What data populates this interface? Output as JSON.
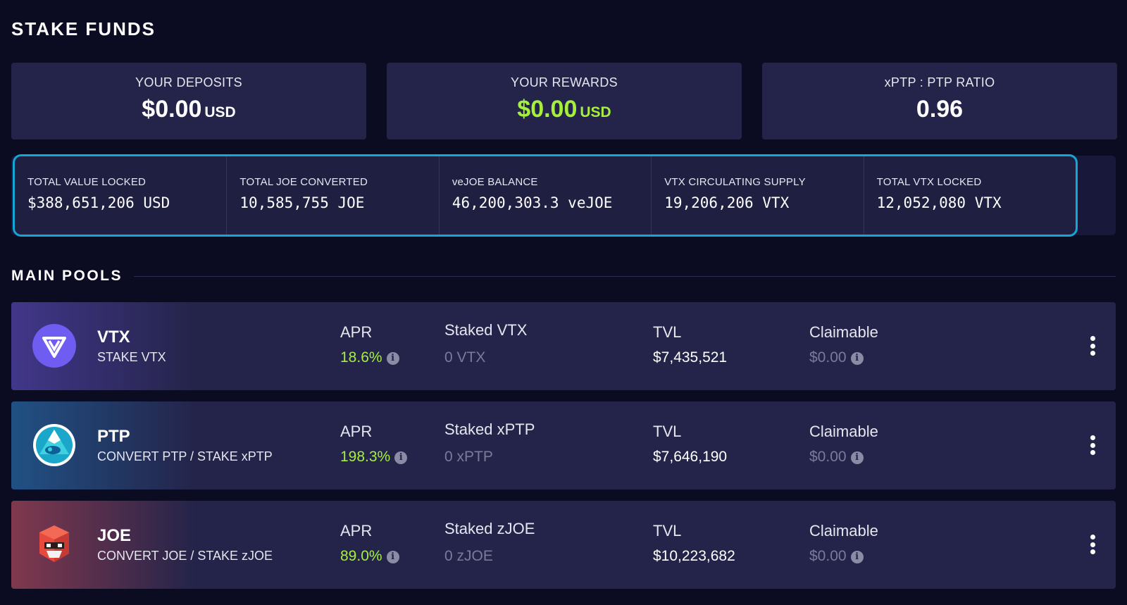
{
  "page_title": "STAKE FUNDS",
  "summary": {
    "deposits": {
      "label": "YOUR DEPOSITS",
      "value": "$0.00",
      "unit": "USD"
    },
    "rewards": {
      "label": "YOUR REWARDS",
      "value": "$0.00",
      "unit": "USD"
    },
    "ratio": {
      "label": "xPTP : PTP RATIO",
      "value": "0.96"
    }
  },
  "stats": [
    {
      "label": "TOTAL VALUE LOCKED",
      "value": "$388,651,206 USD"
    },
    {
      "label": "TOTAL JOE CONVERTED",
      "value": "10,585,755 JOE"
    },
    {
      "label": "veJOE BALANCE",
      "value": "46,200,303.3 veJOE"
    },
    {
      "label": "VTX CIRCULATING SUPPLY",
      "value": "19,206,206 VTX"
    },
    {
      "label": "TOTAL VTX LOCKED",
      "value": "12,052,080 VTX"
    }
  ],
  "section_title": "MAIN POOLS",
  "pools": [
    {
      "name": "VTX",
      "subtitle": "STAKE VTX",
      "apr_label": "APR",
      "apr": "18.6%",
      "staked_label": "Staked VTX",
      "staked": "0 VTX",
      "tvl_label": "TVL",
      "tvl": "$7,435,521",
      "claimable_label": "Claimable",
      "claimable": "$0.00"
    },
    {
      "name": "PTP",
      "subtitle": "CONVERT PTP / STAKE xPTP",
      "apr_label": "APR",
      "apr": "198.3%",
      "staked_label": "Staked xPTP",
      "staked": "0 xPTP",
      "tvl_label": "TVL",
      "tvl": "$7,646,190",
      "claimable_label": "Claimable",
      "claimable": "$0.00"
    },
    {
      "name": "JOE",
      "subtitle": "CONVERT JOE / STAKE zJOE",
      "apr_label": "APR",
      "apr": "89.0%",
      "staked_label": "Staked zJOE",
      "staked": "0 zJOE",
      "tvl_label": "TVL",
      "tvl": "$10,223,682",
      "claimable_label": "Claimable",
      "claimable": "$0.00"
    }
  ],
  "info_glyph": "i",
  "colors": {
    "accent_green": "#a5f03c",
    "strip_border": "#14a6d4",
    "card_bg": "#24244a",
    "page_bg": "#0b0b22"
  }
}
